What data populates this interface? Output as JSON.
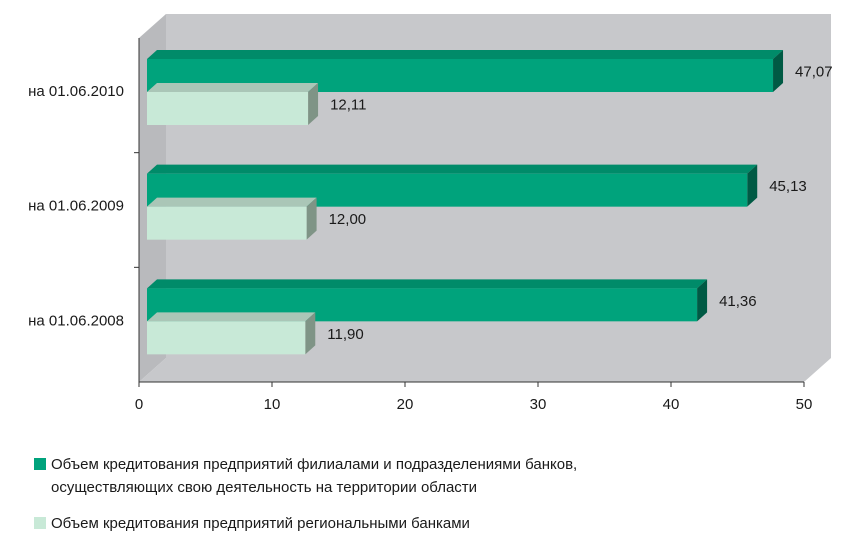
{
  "colors": {
    "series1": "#00a37c",
    "series2": "#c8e9d7",
    "wall": "#c7c8cb",
    "floor": "#c7c8cb"
  },
  "chart_data": {
    "type": "bar",
    "orientation": "horizontal",
    "style": "3d",
    "categories": [
      "на 01.06.2008",
      "на 01.06.2009",
      "на 01.06.2010"
    ],
    "series": [
      {
        "name": "Объем кредитования предприятий филиалами и подразделениями банков,\nосуществляющих свою деятельность на территории области",
        "values": [
          41.36,
          45.13,
          47.07
        ],
        "labels": [
          "41,36",
          "45,13",
          "47,07"
        ]
      },
      {
        "name": "Объем кредитования предприятий региональными банками",
        "values": [
          11.9,
          12.0,
          12.11
        ],
        "labels": [
          "11,90",
          "12,00",
          "12,11"
        ]
      }
    ],
    "xlim": [
      0,
      50
    ],
    "xticks": [
      0,
      10,
      20,
      30,
      40,
      50
    ],
    "xtick_labels": [
      "0",
      "10",
      "20",
      "30",
      "40",
      "50"
    ],
    "grid": false,
    "legend_position": "bottom"
  }
}
